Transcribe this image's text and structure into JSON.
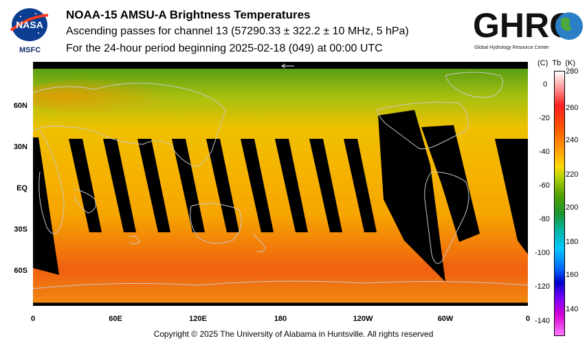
{
  "header": {
    "title": "NOAA-15 AMSU-A Brightness Temperatures",
    "subtitle": "Ascending passes for channel 13 (57290.33 ± 322.2 ± 10 MHz, 5 hPa)",
    "period": "For the 24-hour period beginning 2025-02-18 (049) at 00:00 UTC"
  },
  "logos": {
    "nasa_text": "NASA",
    "msfc_label": "MSFC",
    "ghrc_text": "GHRC",
    "ghrc_subtitle": "Global Hydrology Resource Center"
  },
  "map": {
    "lat_labels": [
      "60N",
      "30N",
      "EQ",
      "30S",
      "60S"
    ],
    "lon_labels": [
      "0",
      "60E",
      "120E",
      "180",
      "120W",
      "60W",
      "0"
    ],
    "colors": {
      "pole_green": "#5a9e12",
      "mid_yellow": "#eec000",
      "tropics_orange": "#f6a500",
      "south_red": "#f06010",
      "gap": "#000000",
      "coast": "#c8c8c8"
    }
  },
  "colorbar": {
    "unit_c": "(C)",
    "unit_tb": "Tb",
    "unit_k": "(K)",
    "celsius_ticks": [
      "0",
      "-20",
      "-40",
      "-60",
      "-80",
      "-100",
      "-120",
      "-140"
    ],
    "kelvin_ticks": [
      "280",
      "260",
      "240",
      "220",
      "200",
      "180",
      "160",
      "140"
    ]
  },
  "footer": {
    "copyright": "Copyright © 2025 The University of Alabama in Huntsville.  All rights reserved"
  }
}
